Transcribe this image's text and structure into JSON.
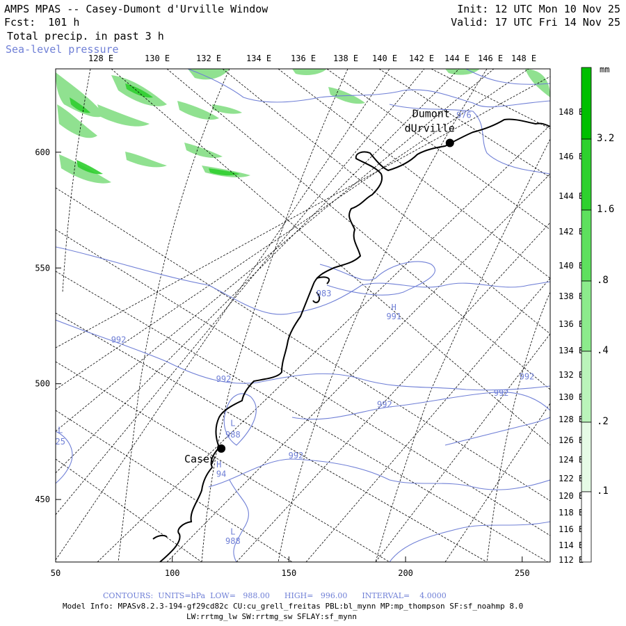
{
  "header": {
    "title": "AMPS MPAS -- Casey-Dumont d'Urville Window",
    "forecast": "Fcst:  101 h",
    "field": "Total precip. in past 3 h",
    "overlay": "Sea-level pressure",
    "init": "Init: 12 UTC Mon 10 Nov 25",
    "valid": "Valid: 17 UTC Fri 14 Nov 25"
  },
  "top_longitudes": [
    "128 E",
    "130 E",
    "132 E",
    "134 E",
    "136 E",
    "138 E",
    "140 E",
    "142 E",
    "144 E",
    "146 E",
    "148 E"
  ],
  "right_longitudes": [
    "148 E",
    "146 E",
    "144 E",
    "142 E",
    "140 E",
    "138 E",
    "136 E",
    "134 E",
    "132 E",
    "130 E",
    "128 E",
    "126 E",
    "124 E",
    "122 E",
    "120 E",
    "118 E",
    "116 E",
    "114 E",
    "112 E"
  ],
  "x_axis": {
    "ticks": [
      "50",
      "100",
      "150",
      "200",
      "250"
    ],
    "range": [
      50,
      262
    ]
  },
  "y_axis": {
    "ticks": [
      "450",
      "500",
      "550",
      "600"
    ],
    "range": [
      423,
      636
    ]
  },
  "stations": [
    {
      "name": "Casey",
      "x": 121,
      "y": 472
    },
    {
      "name_line1": "Dumont",
      "name_line2": "dUrville",
      "x": 219,
      "y": 604
    }
  ],
  "pressure_labels": [
    {
      "text": "976",
      "x": 225,
      "y": 616
    },
    {
      "text": "983",
      "x": 165,
      "y": 539
    },
    {
      "text": "991",
      "x": 195,
      "y": 529
    },
    {
      "text": "992",
      "x": 77,
      "y": 519
    },
    {
      "text": "992",
      "x": 122,
      "y": 502
    },
    {
      "text": "992",
      "x": 191,
      "y": 491
    },
    {
      "text": "992",
      "x": 241,
      "y": 496
    },
    {
      "text": "992",
      "x": 252,
      "y": 503
    },
    {
      "text": "992",
      "x": 153,
      "y": 469
    },
    {
      "text": "988",
      "x": 126,
      "y": 478
    },
    {
      "text": "988",
      "x": 126,
      "y": 432
    },
    {
      "text": "25",
      "x": 52,
      "y": 475
    },
    {
      "text": "94",
      "x": 121,
      "y": 461
    }
  ],
  "centers": [
    {
      "text": "H",
      "x": 195,
      "y": 533
    },
    {
      "text": "L",
      "x": 126,
      "y": 483
    },
    {
      "text": "H",
      "x": 120,
      "y": 465
    },
    {
      "text": "L",
      "x": 126,
      "y": 436
    },
    {
      "text": "L",
      "x": 52,
      "y": 480
    }
  ],
  "colorbar": {
    "unit": "mm",
    "labels": [
      "3.2",
      "1.6",
      ".8",
      ".4",
      ".2",
      ".1"
    ],
    "colors": [
      "#00bf00",
      "#2ed12e",
      "#5ee05e",
      "#8ceb8c",
      "#baf4ba",
      "#e6fbe6"
    ]
  },
  "footer": {
    "contours": "CONTOURS:  UNITS=hPa  LOW=   988.00      HIGH=   996.00      INTERVAL=    4.0000",
    "model_info": "Model Info: MPASv8.2.3-194-gf29cd82c CU:cu_grell_freitas PBL:bl_mynn MP:mp_thompson SF:sf_noahmp 8.0",
    "model_info2": "LW:rrtmg_lw SW:rrtmg_sw SFLAY:sf_mynn"
  },
  "colors": {
    "coast": "#000000",
    "isobar": "#6f7fd6",
    "grid": "#000000",
    "precip": "#6ed66e"
  }
}
